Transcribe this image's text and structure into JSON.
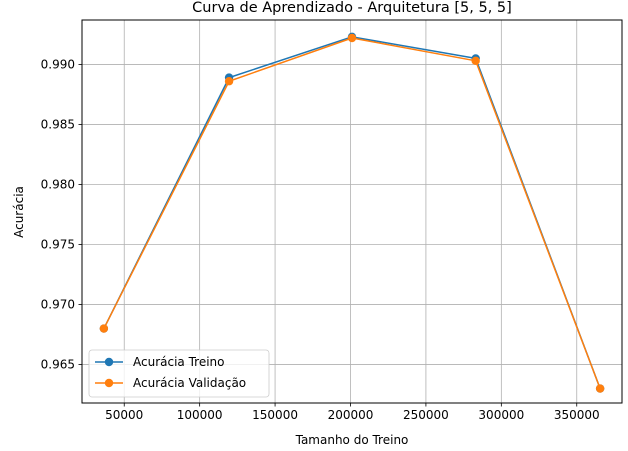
{
  "chart_data": {
    "type": "line",
    "title": "Curva de Aprendizado - Arquitetura [5, 5, 5]",
    "xlabel": "Tamanho do Treino",
    "ylabel": "Acurácia",
    "xlim": [
      22000,
      380000
    ],
    "ylim": [
      0.9618,
      0.9937
    ],
    "xticks": [
      50000,
      100000,
      150000,
      200000,
      250000,
      300000,
      350000
    ],
    "xtick_labels": [
      "50000",
      "100000",
      "150000",
      "200000",
      "250000",
      "300000",
      "350000"
    ],
    "yticks": [
      0.965,
      0.97,
      0.975,
      0.98,
      0.985,
      0.99
    ],
    "ytick_labels": [
      "0.965",
      "0.970",
      "0.975",
      "0.980",
      "0.985",
      "0.990"
    ],
    "grid": true,
    "legend_position": "lower-left",
    "series": [
      {
        "name": "Acurácia Treino",
        "color": "#1f77b4",
        "marker": "circle",
        "x": [
          36500,
          119500,
          201000,
          283000,
          365500
        ],
        "y": [
          0.968,
          0.9889,
          0.9923,
          0.9905,
          0.963
        ]
      },
      {
        "name": "Acurácia Validação",
        "color": "#ff7f0e",
        "marker": "circle",
        "x": [
          36500,
          119500,
          201000,
          283000,
          365500
        ],
        "y": [
          0.968,
          0.9886,
          0.9922,
          0.9903,
          0.963
        ]
      }
    ]
  }
}
